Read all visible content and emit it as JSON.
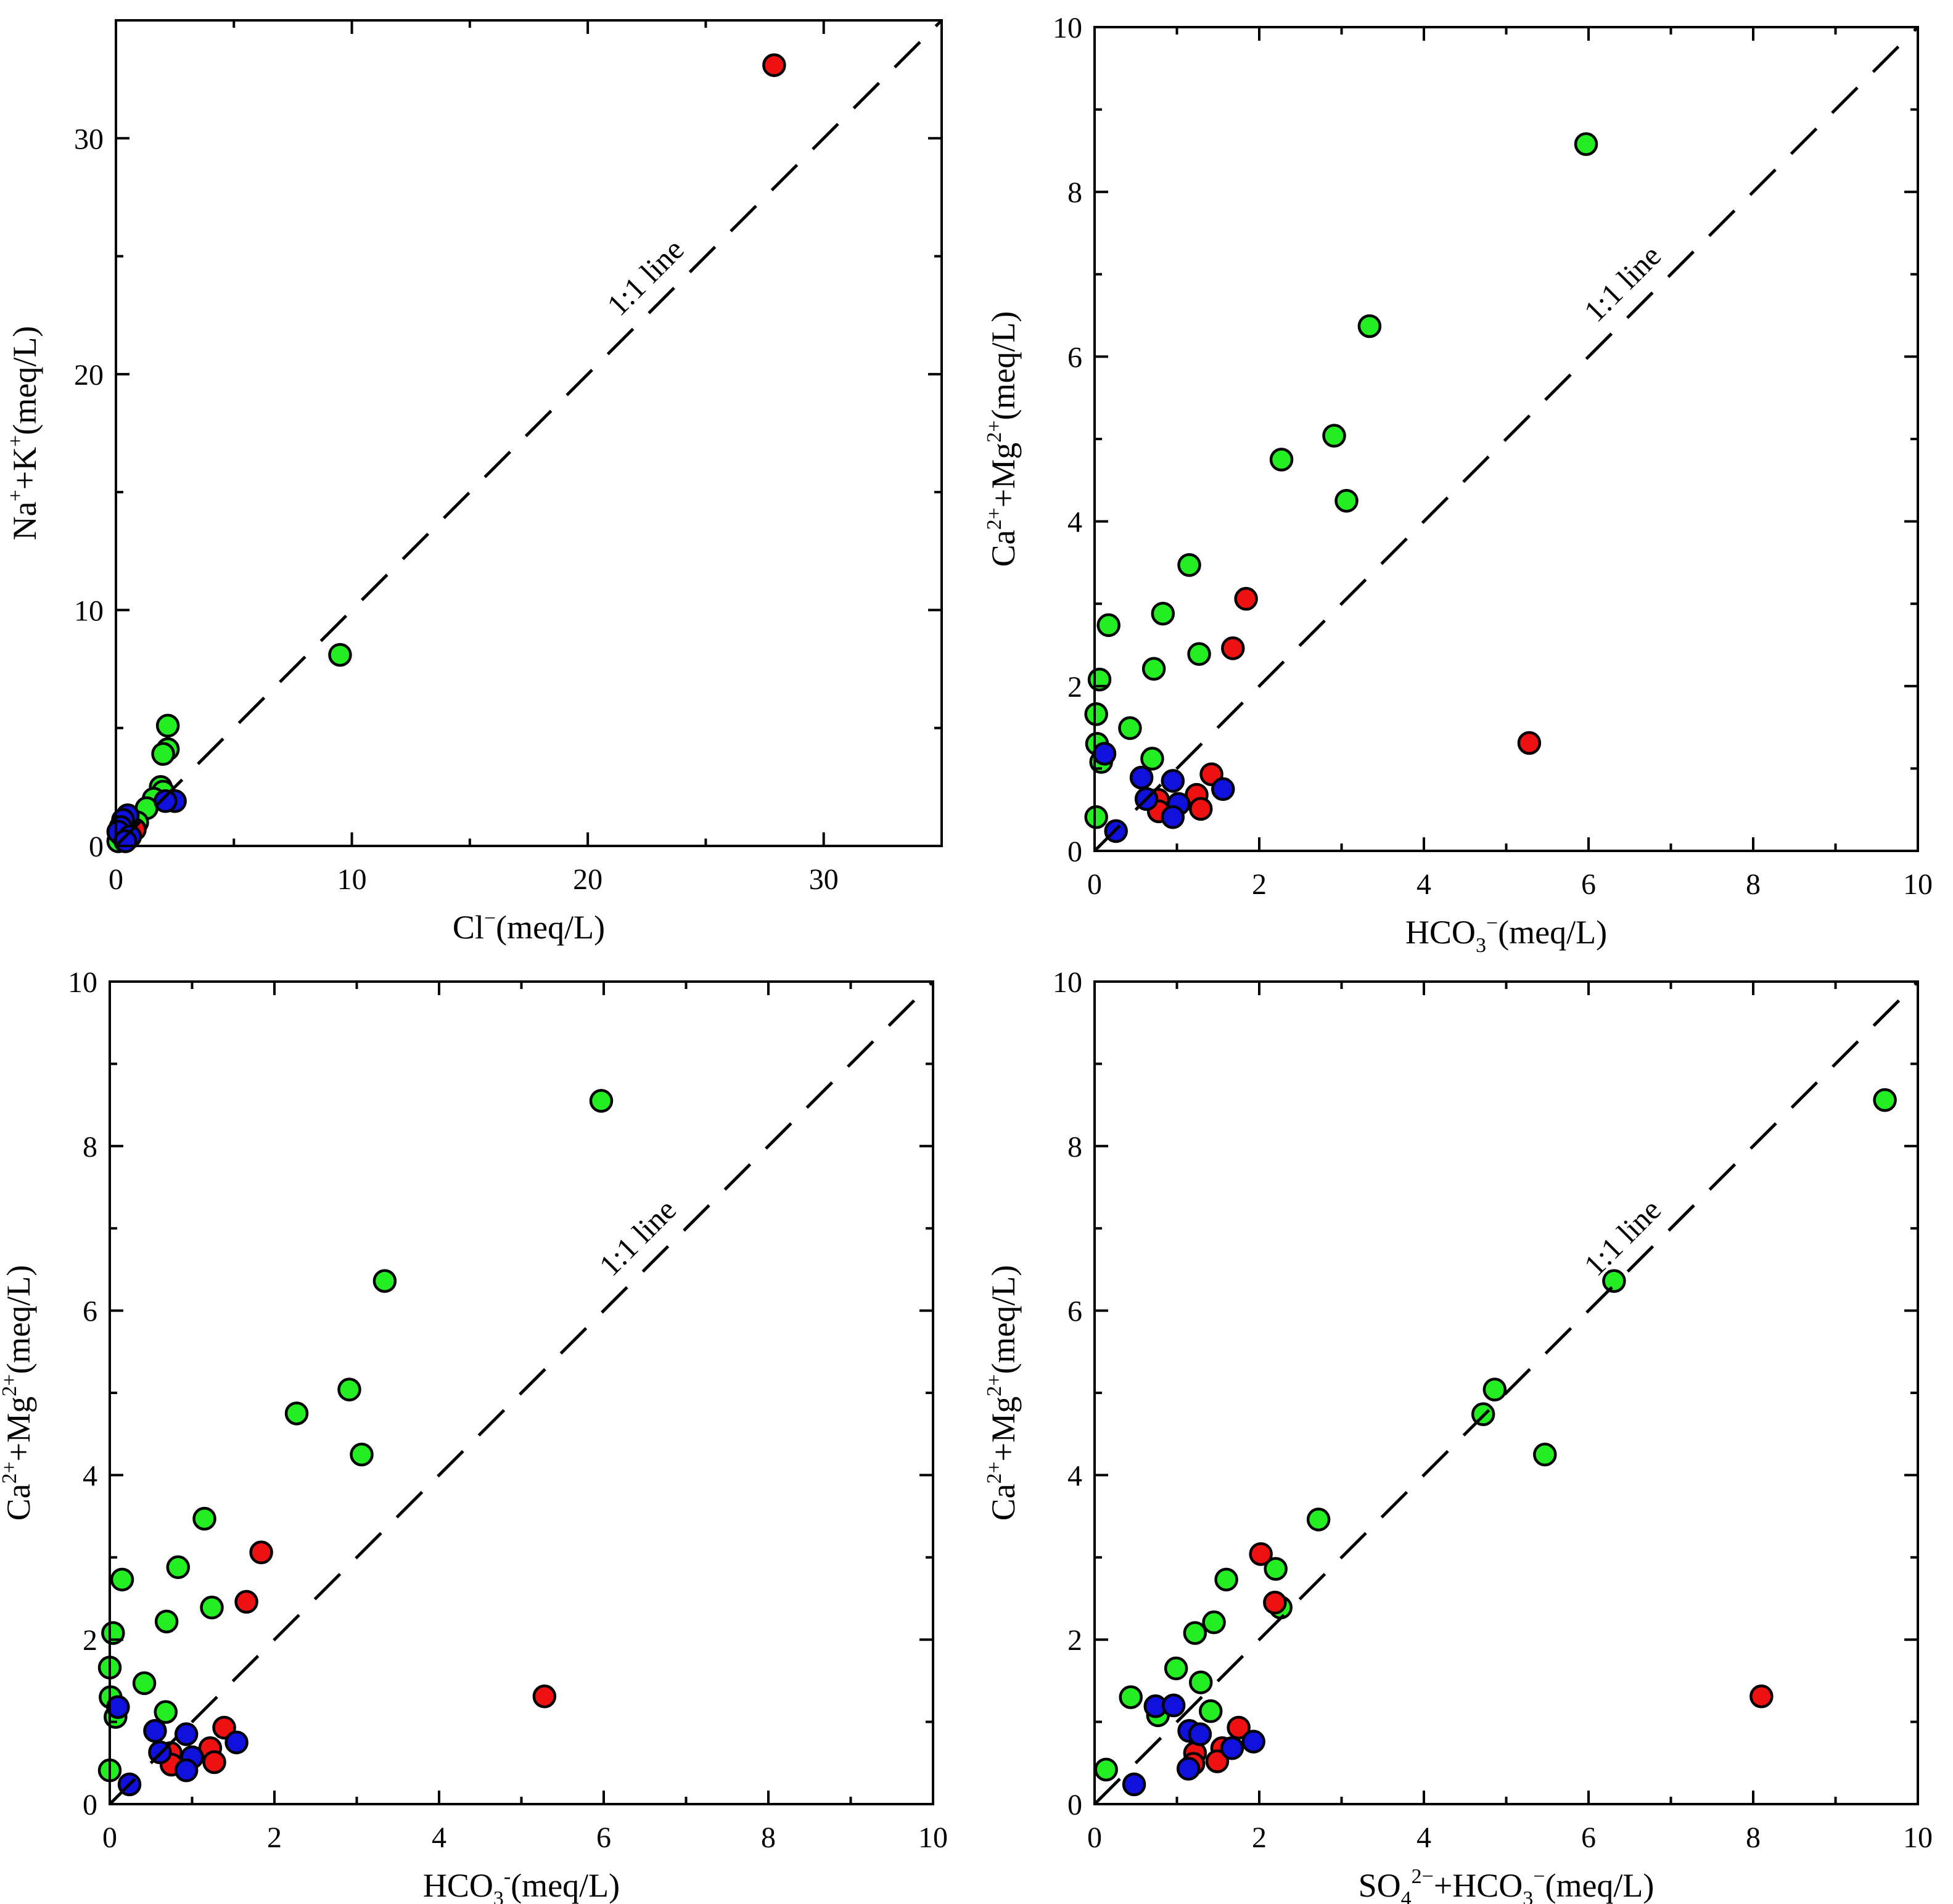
{
  "colors": {
    "green": "#22ee22",
    "red": "#ee1111",
    "blue": "#1111dd"
  },
  "chart_data": [
    {
      "type": "scatter",
      "title": "",
      "xlabel": "Cl⁻(meq/L)",
      "ylabel": "Na⁺+K⁺(meq/L)",
      "xlim": [
        0,
        35
      ],
      "ylim": [
        0,
        35
      ],
      "xticks": [
        "0",
        "10",
        "20",
        "30"
      ],
      "xtick_values": [
        0,
        10,
        20,
        30
      ],
      "yticks": [
        "0",
        "10",
        "20",
        "30"
      ],
      "ytick_values": [
        0,
        10,
        20,
        30
      ],
      "minor_step": 5,
      "reference_line": {
        "label": "1:1 line",
        "from": [
          0,
          0
        ],
        "to": [
          35,
          35
        ]
      },
      "series": [
        {
          "name": "green",
          "color": "#22ee22",
          "points": [
            [
              9.5,
              8.1
            ],
            [
              2.2,
              5.1
            ],
            [
              2.2,
              4.1
            ],
            [
              2.0,
              3.9
            ],
            [
              1.9,
              2.5
            ],
            [
              2.0,
              2.3
            ],
            [
              1.6,
              2.0
            ],
            [
              1.3,
              1.6
            ],
            [
              0.9,
              1.0
            ],
            [
              0.4,
              0.6
            ],
            [
              0.2,
              0.4
            ],
            [
              0.1,
              0.2
            ]
          ]
        },
        {
          "name": "red",
          "color": "#ee1111",
          "points": [
            [
              27.9,
              33.1
            ],
            [
              0.3,
              0.9
            ],
            [
              0.8,
              0.7
            ],
            [
              0.5,
              0.3
            ],
            [
              0.2,
              0.5
            ],
            [
              0.4,
              0.5
            ]
          ]
        },
        {
          "name": "blue",
          "color": "#1111dd",
          "points": [
            [
              2.5,
              1.9
            ],
            [
              2.1,
              1.9
            ],
            [
              0.5,
              1.3
            ],
            [
              0.3,
              1.1
            ],
            [
              0.2,
              0.8
            ],
            [
              0.1,
              0.6
            ],
            [
              0.6,
              0.4
            ],
            [
              0.4,
              0.2
            ]
          ]
        }
      ]
    },
    {
      "type": "scatter",
      "title": "",
      "xlabel": "HCO₃⁻(meq/L)",
      "ylabel": "Ca²⁺+Mg²⁺(meq/L)",
      "xlim": [
        0,
        10
      ],
      "ylim": [
        0,
        10
      ],
      "xticks": [
        "0",
        "2",
        "4",
        "6",
        "8",
        "10"
      ],
      "xtick_values": [
        0,
        2,
        4,
        6,
        8,
        10
      ],
      "yticks": [
        "0",
        "2",
        "4",
        "6",
        "8",
        "10"
      ],
      "ytick_values": [
        0,
        2,
        4,
        6,
        8,
        10
      ],
      "minor_step": 1,
      "reference_line": {
        "label": "1:1 line",
        "from": [
          0,
          0
        ],
        "to": [
          10,
          10
        ]
      },
      "series": [
        {
          "name": "green",
          "color": "#22ee22",
          "points": [
            [
              5.97,
              8.58
            ],
            [
              3.34,
              6.37
            ],
            [
              2.91,
              5.04
            ],
            [
              2.27,
              4.75
            ],
            [
              3.06,
              4.25
            ],
            [
              1.15,
              3.47
            ],
            [
              0.83,
              2.88
            ],
            [
              0.17,
              2.74
            ],
            [
              1.27,
              2.39
            ],
            [
              0.72,
              2.21
            ],
            [
              0.06,
              2.08
            ],
            [
              0.02,
              1.66
            ],
            [
              0.43,
              1.49
            ],
            [
              0.03,
              1.3
            ],
            [
              0.08,
              1.08
            ],
            [
              0.7,
              1.12
            ],
            [
              0.02,
              0.41
            ]
          ]
        },
        {
          "name": "red",
          "color": "#ee1111",
          "points": [
            [
              1.84,
              3.06
            ],
            [
              1.68,
              2.46
            ],
            [
              5.28,
              1.31
            ],
            [
              1.42,
              0.93
            ],
            [
              1.24,
              0.68
            ],
            [
              0.77,
              0.62
            ],
            [
              1.29,
              0.51
            ],
            [
              0.78,
              0.48
            ]
          ]
        },
        {
          "name": "blue",
          "color": "#1111dd",
          "points": [
            [
              0.12,
              1.18
            ],
            [
              0.57,
              0.89
            ],
            [
              0.95,
              0.85
            ],
            [
              1.56,
              0.75
            ],
            [
              1.02,
              0.57
            ],
            [
              0.63,
              0.63
            ],
            [
              0.95,
              0.41
            ],
            [
              0.26,
              0.24
            ]
          ]
        }
      ]
    },
    {
      "type": "scatter",
      "title": "",
      "xlabel": "HCO₃⁻(meq/L)",
      "ylabel": "Ca²⁺+Mg²⁺(meq/L)",
      "xlim": [
        0,
        10
      ],
      "ylim": [
        0,
        10
      ],
      "xticks": [
        "0",
        "2",
        "4",
        "6",
        "8",
        "10"
      ],
      "xtick_values": [
        0,
        2,
        4,
        6,
        8,
        10
      ],
      "yticks": [
        "0",
        "2",
        "4",
        "6",
        "8",
        "10"
      ],
      "ytick_values": [
        0,
        2,
        4,
        6,
        8,
        10
      ],
      "minor_step": 1,
      "reference_line": {
        "label": "1:1 line",
        "from": [
          0,
          0
        ],
        "to": [
          10,
          10
        ]
      },
      "series": [
        {
          "name": "green",
          "color": "#22ee22",
          "points": [
            [
              5.97,
              8.55
            ],
            [
              3.34,
              6.36
            ],
            [
              2.91,
              5.04
            ],
            [
              2.27,
              4.75
            ],
            [
              3.06,
              4.25
            ],
            [
              1.15,
              3.47
            ],
            [
              0.83,
              2.88
            ],
            [
              0.15,
              2.73
            ],
            [
              1.24,
              2.39
            ],
            [
              0.69,
              2.22
            ],
            [
              0.04,
              2.08
            ],
            [
              0.0,
              1.66
            ],
            [
              0.42,
              1.47
            ],
            [
              0.01,
              1.3
            ],
            [
              0.07,
              1.06
            ],
            [
              0.68,
              1.12
            ],
            [
              0.0,
              0.41
            ]
          ]
        },
        {
          "name": "red",
          "color": "#ee1111",
          "points": [
            [
              1.84,
              3.06
            ],
            [
              1.66,
              2.46
            ],
            [
              5.28,
              1.31
            ],
            [
              1.39,
              0.93
            ],
            [
              1.22,
              0.68
            ],
            [
              0.74,
              0.62
            ],
            [
              1.27,
              0.51
            ],
            [
              0.75,
              0.48
            ]
          ]
        },
        {
          "name": "blue",
          "color": "#1111dd",
          "points": [
            [
              0.1,
              1.18
            ],
            [
              0.55,
              0.89
            ],
            [
              0.93,
              0.85
            ],
            [
              1.54,
              0.75
            ],
            [
              1.0,
              0.57
            ],
            [
              0.61,
              0.63
            ],
            [
              0.93,
              0.41
            ],
            [
              0.24,
              0.24
            ]
          ]
        }
      ]
    },
    {
      "type": "scatter",
      "title": "",
      "xlabel": "SO₄²⁻+HCO₃⁻(meq/L)",
      "ylabel": "Ca²⁺+Mg²⁺(meq/L)",
      "xlim": [
        0,
        10
      ],
      "ylim": [
        0,
        10
      ],
      "xticks": [
        "0",
        "2",
        "4",
        "6",
        "8",
        "10"
      ],
      "xtick_values": [
        0,
        2,
        4,
        6,
        8,
        10
      ],
      "yticks": [
        "0",
        "2",
        "4",
        "6",
        "8",
        "10"
      ],
      "ytick_values": [
        0,
        2,
        4,
        6,
        8,
        10
      ],
      "minor_step": 1,
      "reference_line": {
        "label": "1:1 line",
        "from": [
          0,
          0
        ],
        "to": [
          10,
          10
        ]
      },
      "series": [
        {
          "name": "green",
          "color": "#22ee22",
          "points": [
            [
              9.6,
              8.56
            ],
            [
              6.31,
              6.36
            ],
            [
              4.86,
              5.04
            ],
            [
              4.72,
              4.74
            ],
            [
              5.47,
              4.25
            ],
            [
              2.72,
              3.46
            ],
            [
              2.2,
              2.86
            ],
            [
              1.6,
              2.73
            ],
            [
              2.26,
              2.39
            ],
            [
              1.45,
              2.21
            ],
            [
              1.22,
              2.08
            ],
            [
              0.99,
              1.65
            ],
            [
              1.29,
              1.48
            ],
            [
              0.44,
              1.3
            ],
            [
              0.77,
              1.08
            ],
            [
              1.41,
              1.13
            ],
            [
              0.14,
              0.42
            ]
          ]
        },
        {
          "name": "red",
          "color": "#ee1111",
          "points": [
            [
              2.02,
              3.04
            ],
            [
              2.19,
              2.45
            ],
            [
              8.1,
              1.31
            ],
            [
              1.75,
              0.93
            ],
            [
              1.55,
              0.68
            ],
            [
              1.22,
              0.62
            ],
            [
              1.49,
              0.52
            ],
            [
              1.2,
              0.49
            ]
          ]
        },
        {
          "name": "blue",
          "color": "#1111dd",
          "points": [
            [
              0.74,
              1.19
            ],
            [
              0.96,
              1.2
            ],
            [
              1.15,
              0.89
            ],
            [
              1.28,
              0.85
            ],
            [
              1.93,
              0.76
            ],
            [
              1.67,
              0.68
            ],
            [
              1.14,
              0.43
            ],
            [
              0.48,
              0.24
            ]
          ]
        }
      ]
    }
  ]
}
